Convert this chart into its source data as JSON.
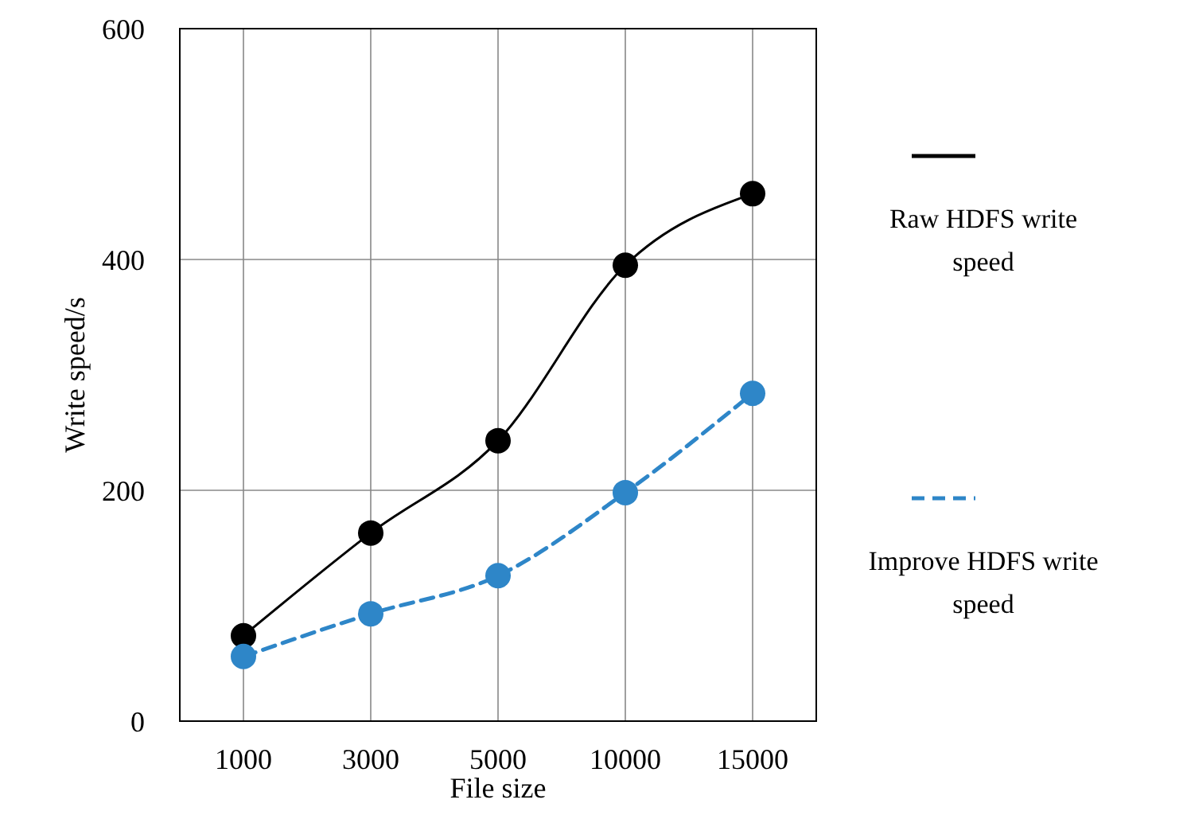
{
  "chart_data": {
    "type": "line",
    "xlabel": "File size",
    "ylabel": "Write speed/s",
    "categories": [
      "1000",
      "3000",
      "5000",
      "10000",
      "15000"
    ],
    "ylim": [
      0,
      600
    ],
    "yticks": [
      0,
      200,
      400,
      600
    ],
    "grid": true,
    "legend": "right",
    "marker": "circle",
    "series": [
      {
        "name": "Raw HDFS write speed",
        "color": "#000000",
        "line_style": "solid",
        "values": [
          74,
          163,
          243,
          395,
          457
        ]
      },
      {
        "name": "Improve HDFS write speed",
        "color": "#2e86c8",
        "line_style": "dashed",
        "values": [
          56,
          93,
          126,
          198,
          284
        ]
      }
    ]
  }
}
